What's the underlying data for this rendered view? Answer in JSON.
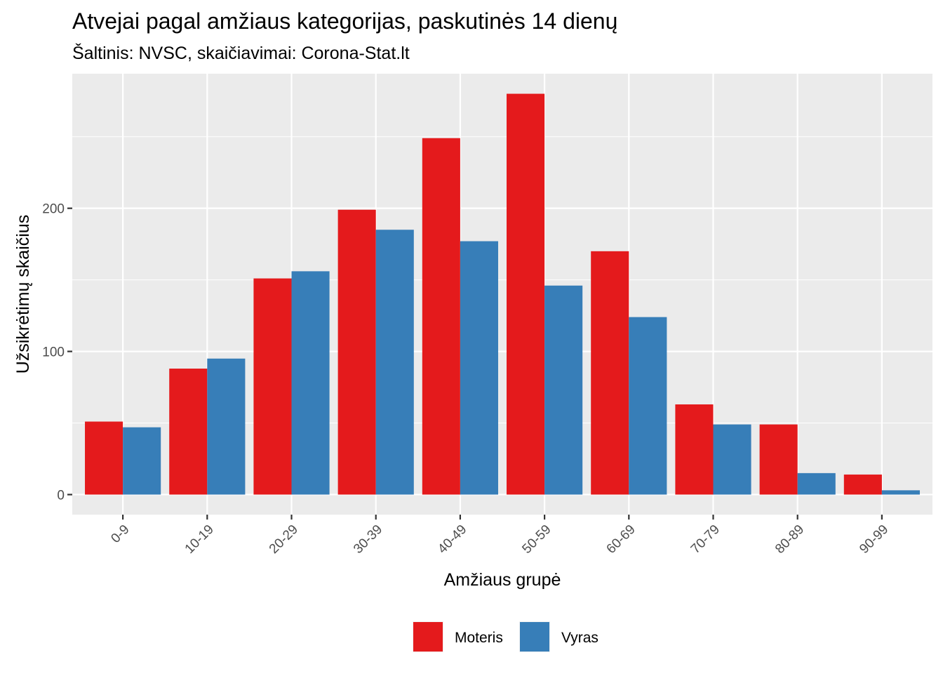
{
  "chart_data": {
    "type": "bar",
    "title": "Atvejai pagal amžiaus kategorijas, paskutinės 14 dienų",
    "subtitle": "Šaltinis: NVSC, skaičiavimai: Corona-Stat.lt",
    "xlabel": "Amžiaus grupė",
    "ylabel": "Užsikrėtimų skaičius",
    "categories": [
      "0-9",
      "10-19",
      "20-29",
      "30-39",
      "40-49",
      "50-59",
      "60-69",
      "70-79",
      "80-89",
      "90-99"
    ],
    "series": [
      {
        "name": "Moteris",
        "color": "#E41A1C",
        "values": [
          51,
          88,
          151,
          199,
          249,
          280,
          170,
          63,
          49,
          14
        ]
      },
      {
        "name": "Vyras",
        "color": "#377EB8",
        "values": [
          47,
          95,
          156,
          185,
          177,
          146,
          124,
          49,
          15,
          3
        ]
      }
    ],
    "ylim": [
      -14,
      294
    ],
    "yticks": [
      0,
      100,
      200
    ],
    "grid": true,
    "panel_background": "#EBEBEB",
    "legend_position": "bottom"
  }
}
